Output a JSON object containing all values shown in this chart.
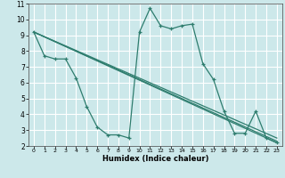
{
  "xlabel": "Humidex (Indice chaleur)",
  "bg_color": "#cce8ea",
  "grid_color": "#ffffff",
  "line_color": "#2e7d6e",
  "xlim": [
    -0.5,
    23.5
  ],
  "ylim": [
    2,
    11
  ],
  "xticks": [
    0,
    1,
    2,
    3,
    4,
    5,
    6,
    7,
    8,
    9,
    10,
    11,
    12,
    13,
    14,
    15,
    16,
    17,
    18,
    19,
    20,
    21,
    22,
    23
  ],
  "yticks": [
    2,
    3,
    4,
    5,
    6,
    7,
    8,
    9,
    10,
    11
  ],
  "main_series": {
    "x": [
      0,
      1,
      2,
      3,
      4,
      5,
      6,
      7,
      8,
      9,
      10,
      11,
      12,
      13,
      14,
      15,
      16,
      17,
      18,
      19,
      20,
      21,
      22,
      23
    ],
    "y": [
      9.2,
      7.7,
      7.5,
      7.5,
      6.3,
      4.5,
      3.2,
      2.7,
      2.7,
      2.5,
      9.2,
      10.7,
      9.6,
      9.4,
      9.6,
      9.7,
      7.2,
      6.2,
      4.2,
      2.8,
      2.8,
      4.2,
      2.5,
      2.2
    ]
  },
  "straight_lines": [
    {
      "x": [
        0,
        23
      ],
      "y": [
        9.2,
        2.2
      ]
    },
    {
      "x": [
        0,
        23
      ],
      "y": [
        9.2,
        2.3
      ]
    },
    {
      "x": [
        0,
        23
      ],
      "y": [
        9.2,
        2.5
      ]
    }
  ]
}
